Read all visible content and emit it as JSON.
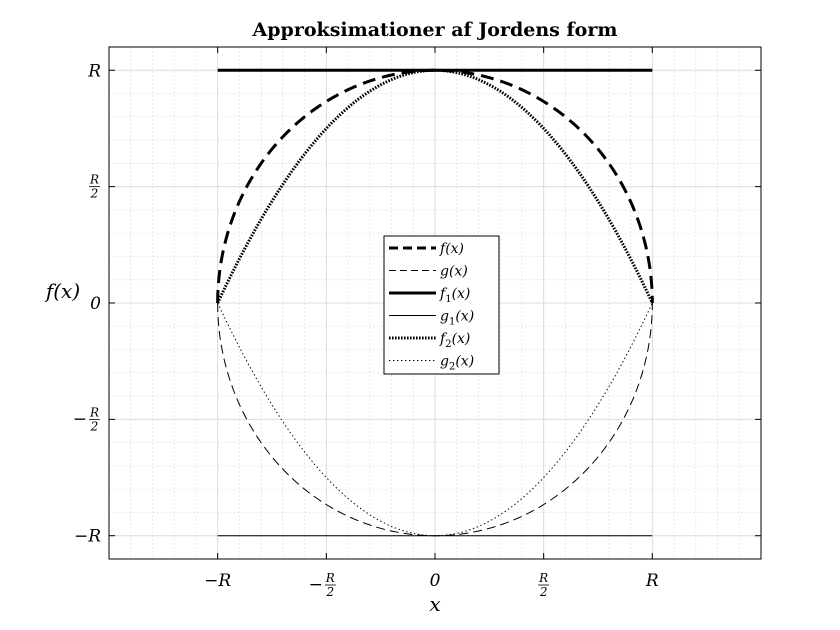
{
  "chart_data": {
    "type": "line",
    "title": "Approksimationer af Jordens form",
    "xlabel": "x",
    "ylabel": "f(x)",
    "xlim": [
      -1.5,
      1.5
    ],
    "ylim": [
      -1.1,
      1.1
    ],
    "grid": true,
    "minor_grid": true,
    "legend_position": "center",
    "x_ticks": [
      {
        "value": -1,
        "text": "−R"
      },
      {
        "value": -0.5,
        "text": "−R/2",
        "sign": "−",
        "num": "R",
        "den": "2"
      },
      {
        "value": 0,
        "text": "0"
      },
      {
        "value": 0.5,
        "text": "R/2",
        "sign": "",
        "num": "R",
        "den": "2"
      },
      {
        "value": 1,
        "text": "R"
      }
    ],
    "y_ticks": [
      {
        "value": 1,
        "text": "R"
      },
      {
        "value": 0.5,
        "text": "R/2",
        "sign": "",
        "num": "R",
        "den": "2"
      },
      {
        "value": 0,
        "text": "0"
      },
      {
        "value": -0.5,
        "text": "−R/2",
        "sign": "−",
        "num": "R",
        "den": "2"
      },
      {
        "value": -1,
        "text": "−R"
      }
    ],
    "series": [
      {
        "name": "f(x)",
        "legend": {
          "base": "f",
          "sub": "",
          "arg": "(x)"
        },
        "style": "dashed",
        "weight": "thick",
        "function": "circle_upper",
        "x": [
          -1,
          -0.9,
          -0.75,
          -0.5,
          -0.25,
          0,
          0.25,
          0.5,
          0.75,
          0.9,
          1
        ],
        "y": [
          0,
          0.436,
          0.661,
          0.866,
          0.968,
          1,
          0.968,
          0.866,
          0.661,
          0.436,
          0
        ]
      },
      {
        "name": "g(x)",
        "legend": {
          "base": "g",
          "sub": "",
          "arg": "(x)"
        },
        "style": "dashed",
        "weight": "thin",
        "function": "circle_lower",
        "x": [
          -1,
          -0.9,
          -0.75,
          -0.5,
          -0.25,
          0,
          0.25,
          0.5,
          0.75,
          0.9,
          1
        ],
        "y": [
          0,
          -0.436,
          -0.661,
          -0.866,
          -0.968,
          -1,
          -0.968,
          -0.866,
          -0.661,
          -0.436,
          0
        ]
      },
      {
        "name": "f1(x)",
        "legend": {
          "base": "f",
          "sub": "1",
          "arg": "(x)"
        },
        "style": "solid",
        "weight": "thick",
        "function": "constant_upper",
        "x": [
          -1,
          1
        ],
        "y": [
          1,
          1
        ]
      },
      {
        "name": "g1(x)",
        "legend": {
          "base": "g",
          "sub": "1",
          "arg": "(x)"
        },
        "style": "solid",
        "weight": "thin",
        "function": "constant_lower",
        "x": [
          -1,
          1
        ],
        "y": [
          -1,
          -1
        ]
      },
      {
        "name": "f2(x)",
        "legend": {
          "base": "f",
          "sub": "2",
          "arg": "(x)"
        },
        "style": "dotted",
        "weight": "thick",
        "function": "parabola_upper",
        "x": [
          -1,
          -0.75,
          -0.5,
          -0.25,
          0,
          0.25,
          0.5,
          0.75,
          1
        ],
        "y": [
          0,
          0.4375,
          0.75,
          0.9375,
          1,
          0.9375,
          0.75,
          0.4375,
          0
        ]
      },
      {
        "name": "g2(x)",
        "legend": {
          "base": "g",
          "sub": "2",
          "arg": "(x)"
        },
        "style": "dotted",
        "weight": "thin",
        "function": "parabola_lower",
        "x": [
          -1,
          -0.75,
          -0.5,
          -0.25,
          0,
          0.25,
          0.5,
          0.75,
          1
        ],
        "y": [
          0,
          -0.4375,
          -0.75,
          -0.9375,
          -1,
          -0.9375,
          -0.75,
          -0.4375,
          0
        ]
      }
    ]
  }
}
